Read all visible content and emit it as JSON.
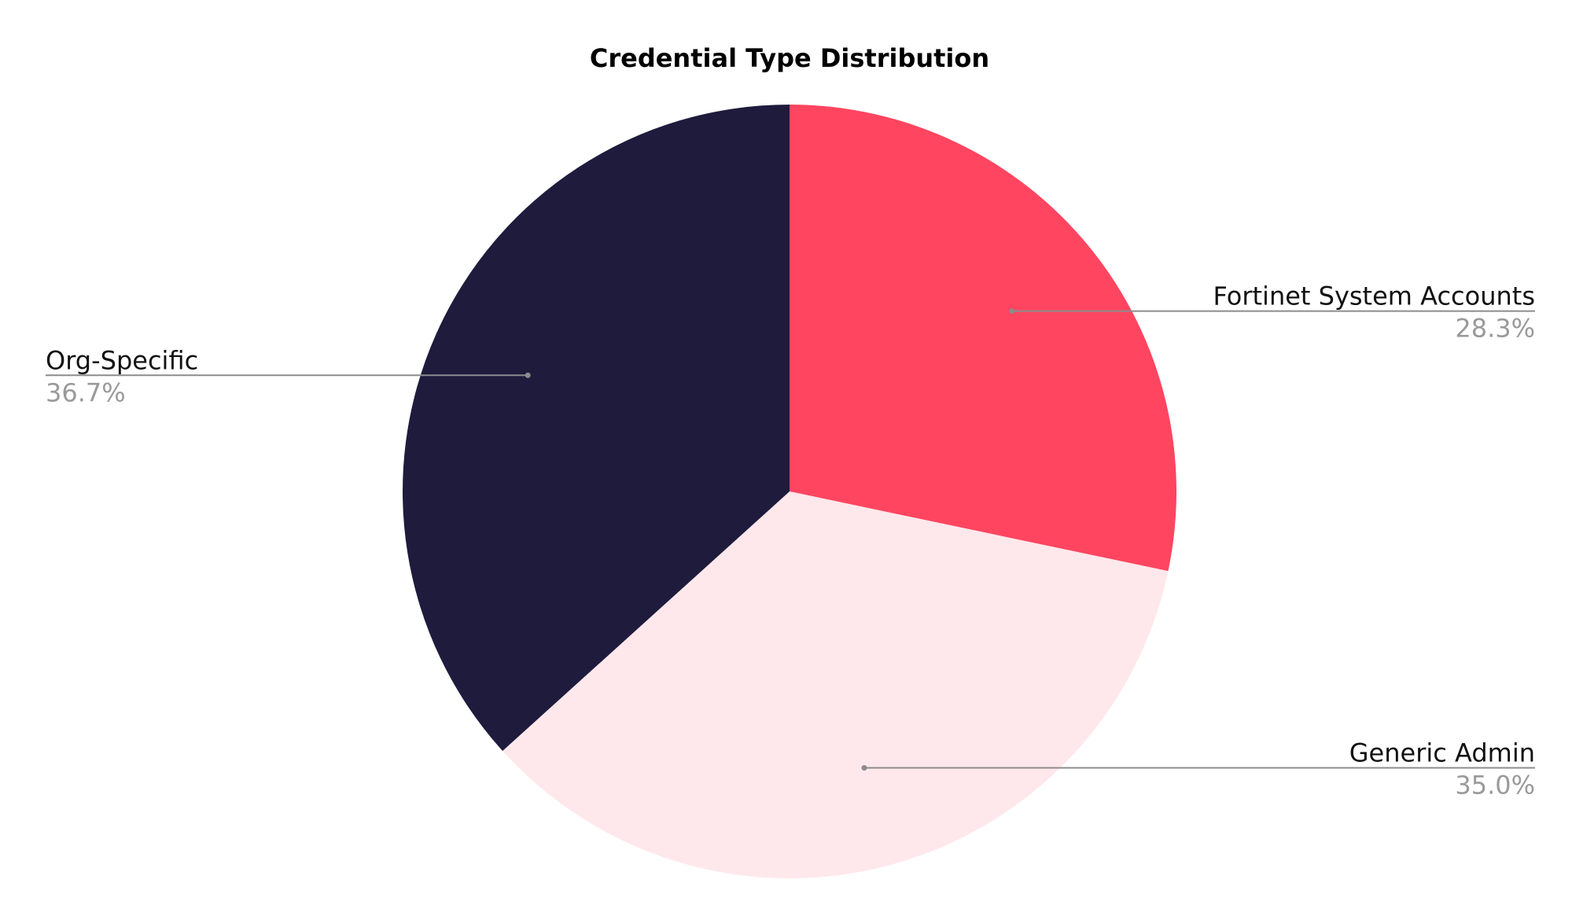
{
  "chart_data": {
    "type": "pie",
    "title": "Credential Type Distribution",
    "start_angle_deg": 0,
    "direction": "clockwise",
    "slices": [
      {
        "label": "Fortinet System Accounts",
        "percent_label": "28.3%",
        "value": 28.3,
        "color": "#FF4560"
      },
      {
        "label": "Generic Admin",
        "percent_label": "35.0%",
        "value": 35.0,
        "color": "#FFE8EB"
      },
      {
        "label": "Org-Specific",
        "percent_label": "36.7%",
        "value": 36.7,
        "color": "#1E1B3D"
      }
    ],
    "legend": "none",
    "label_style": "outside labels with leader lines"
  }
}
